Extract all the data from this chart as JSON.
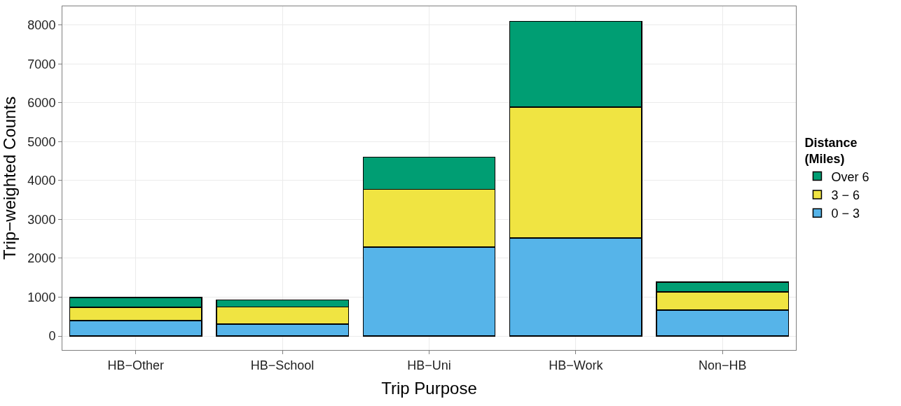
{
  "chart_data": {
    "type": "bar",
    "stacked": true,
    "xlabel": "Trip Purpose",
    "ylabel": "Trip−weighted Counts",
    "legend_title": "Distance\n(Miles)",
    "categories": [
      "HB−Other",
      "HB−School",
      "HB−Uni",
      "HB−Work",
      "Non−HB"
    ],
    "series": [
      {
        "name": "0 − 3",
        "color": "#56b4e9",
        "values": [
          400,
          310,
          2290,
          2520,
          670
        ]
      },
      {
        "name": "3 − 6",
        "color": "#f0e442",
        "values": [
          340,
          440,
          1480,
          3370,
          460
        ]
      },
      {
        "name": "Over 6",
        "color": "#009e73",
        "values": [
          250,
          180,
          830,
          2200,
          260
        ]
      }
    ],
    "ylim": [
      -360,
      8480
    ],
    "yticks": [
      0,
      1000,
      2000,
      3000,
      4000,
      5000,
      6000,
      7000,
      8000
    ],
    "grid": true,
    "legend": "right"
  }
}
